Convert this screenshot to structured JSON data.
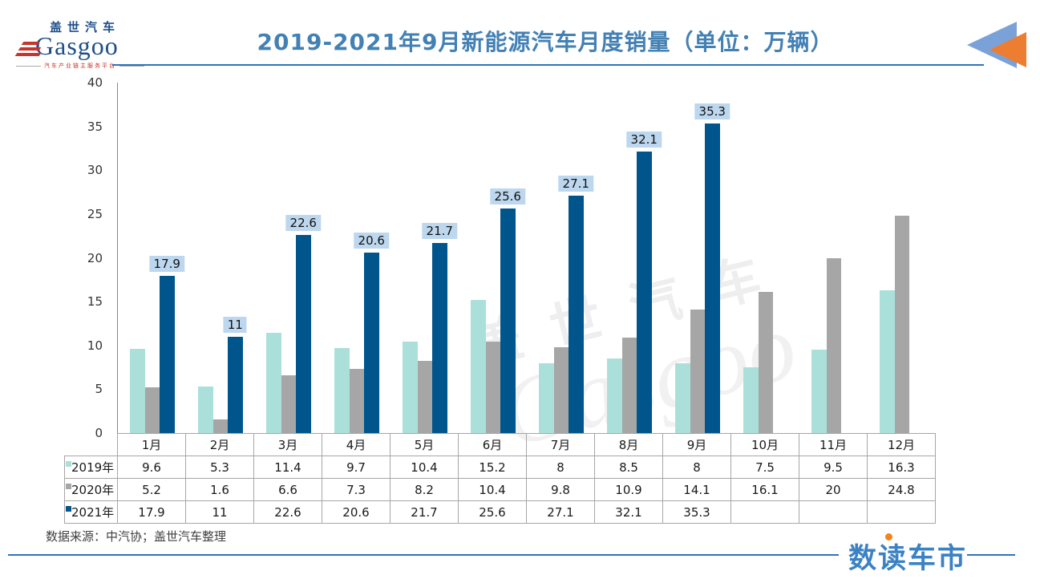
{
  "header": {
    "logo_cn": "盖世汽车",
    "logo_en": "Gasgoo",
    "logo_tagline": "汽车产业链主服务平台",
    "title": "2019-2021年9月新能源汽车月度销量（单位：万辆）"
  },
  "colors": {
    "title_blue": "#4381b4",
    "underline_blue": "#2e75b6",
    "series_2019": "#abe0da",
    "series_2020": "#a6a6a6",
    "series_2021": "#00558c",
    "bar_label_bg": "#bdd7ee",
    "triangle_blue": "#7ba2d8",
    "triangle_orange": "#ed7d31",
    "brand_blue": "#3b82c4"
  },
  "chart_data": {
    "type": "bar",
    "title": "2019-2021年9月新能源汽车月度销量（单位：万辆）",
    "xlabel": "",
    "ylabel": "",
    "ylim": [
      0,
      40
    ],
    "y_ticks": [
      0,
      5,
      10,
      15,
      20,
      25,
      30,
      35,
      40
    ],
    "grid": false,
    "legend_position": "table-rows",
    "watermark_cn": "盖世汽车",
    "watermark_en": "Gasgoo",
    "categories": [
      "1月",
      "2月",
      "3月",
      "4月",
      "5月",
      "6月",
      "7月",
      "8月",
      "9月",
      "10月",
      "11月",
      "12月"
    ],
    "series": [
      {
        "name": "2019年",
        "color": "#abe0da",
        "data_labels": false,
        "values": [
          9.6,
          5.3,
          11.4,
          9.7,
          10.4,
          15.2,
          8,
          8.5,
          8,
          7.5,
          9.5,
          16.3
        ]
      },
      {
        "name": "2020年",
        "color": "#a6a6a6",
        "data_labels": false,
        "values": [
          5.2,
          1.6,
          6.6,
          7.3,
          8.2,
          10.4,
          9.8,
          10.9,
          14.1,
          16.1,
          20,
          24.8
        ]
      },
      {
        "name": "2021年",
        "color": "#00558c",
        "data_labels": true,
        "label_bg": "#bdd7ee",
        "values": [
          17.9,
          11,
          22.6,
          20.6,
          21.7,
          25.6,
          27.1,
          32.1,
          35.3,
          null,
          null,
          null
        ]
      }
    ]
  },
  "footer": {
    "source": "数据来源：中汽协；盖世汽车整理",
    "brand": "数读车市"
  }
}
